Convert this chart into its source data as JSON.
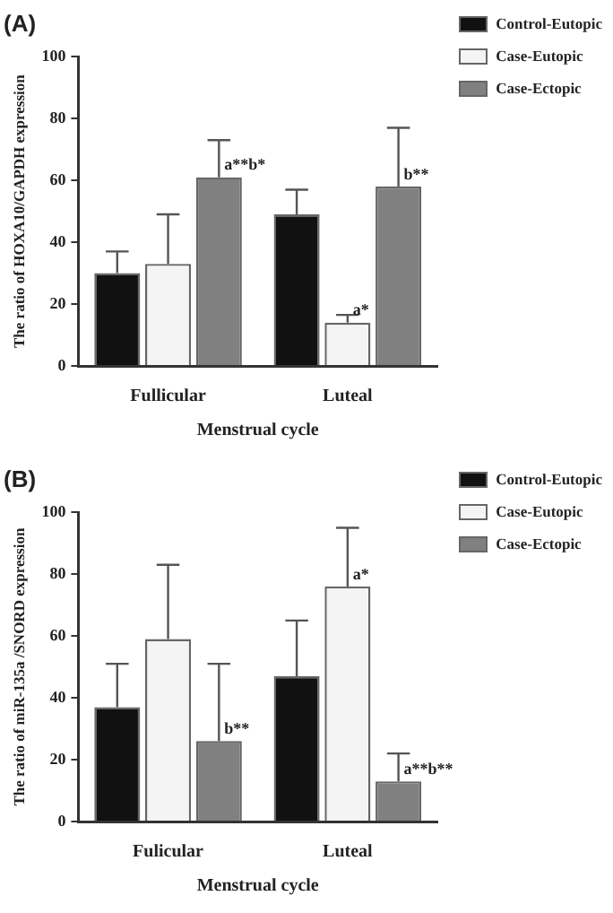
{
  "chart_data": [
    {
      "type": "bar",
      "title": "(A)",
      "xlabel": "Menstrual cycle",
      "ylabel": "The ratio of HOXA10/GAPDH expression",
      "categories": [
        "Fullicular",
        "Luteal"
      ],
      "ylim": [
        0,
        100
      ],
      "yticks": [
        0,
        20,
        40,
        60,
        80,
        100
      ],
      "grid": false,
      "legend": "right",
      "series": [
        {
          "name": "Control-Eutopic",
          "color": "#111111",
          "values": [
            30,
            49
          ],
          "errors": [
            [
              30,
              37
            ],
            [
              49,
              57
            ]
          ]
        },
        {
          "name": "Case-Eutopic",
          "color": "#f4f4f4",
          "values": [
            33,
            14
          ],
          "errors": [
            [
              33,
              49
            ],
            [
              14,
              16.5
            ]
          ],
          "value_labels": [
            null,
            "a*"
          ]
        },
        {
          "name": "Case-Ectopic",
          "color": "#808080",
          "values": [
            61,
            58
          ],
          "errors": [
            [
              61,
              73
            ],
            [
              58,
              77
            ]
          ],
          "value_labels": [
            "a**b*",
            "b**"
          ]
        }
      ]
    },
    {
      "type": "bar",
      "title": "(B)",
      "xlabel": "Menstrual cycle",
      "ylabel": "The ratio of miR-135a /SNORD expression",
      "categories": [
        "Fulicular",
        "Luteal"
      ],
      "ylim": [
        0,
        100
      ],
      "yticks": [
        0,
        20,
        40,
        60,
        80,
        100
      ],
      "grid": false,
      "legend": "right",
      "series": [
        {
          "name": "Control-Eutopic",
          "color": "#111111",
          "values": [
            37,
            47
          ],
          "errors": [
            [
              37,
              51
            ],
            [
              47,
              65
            ]
          ]
        },
        {
          "name": "Case-Eutopic",
          "color": "#f4f4f4",
          "values": [
            59,
            76
          ],
          "errors": [
            [
              59,
              83
            ],
            [
              76,
              95
            ]
          ],
          "value_labels": [
            null,
            "a*"
          ]
        },
        {
          "name": "Case-Ectopic",
          "color": "#808080",
          "values": [
            26,
            13
          ],
          "errors": [
            [
              26,
              51
            ],
            [
              13,
              22
            ]
          ],
          "value_labels": [
            "b**",
            "a**b**"
          ]
        }
      ]
    }
  ]
}
